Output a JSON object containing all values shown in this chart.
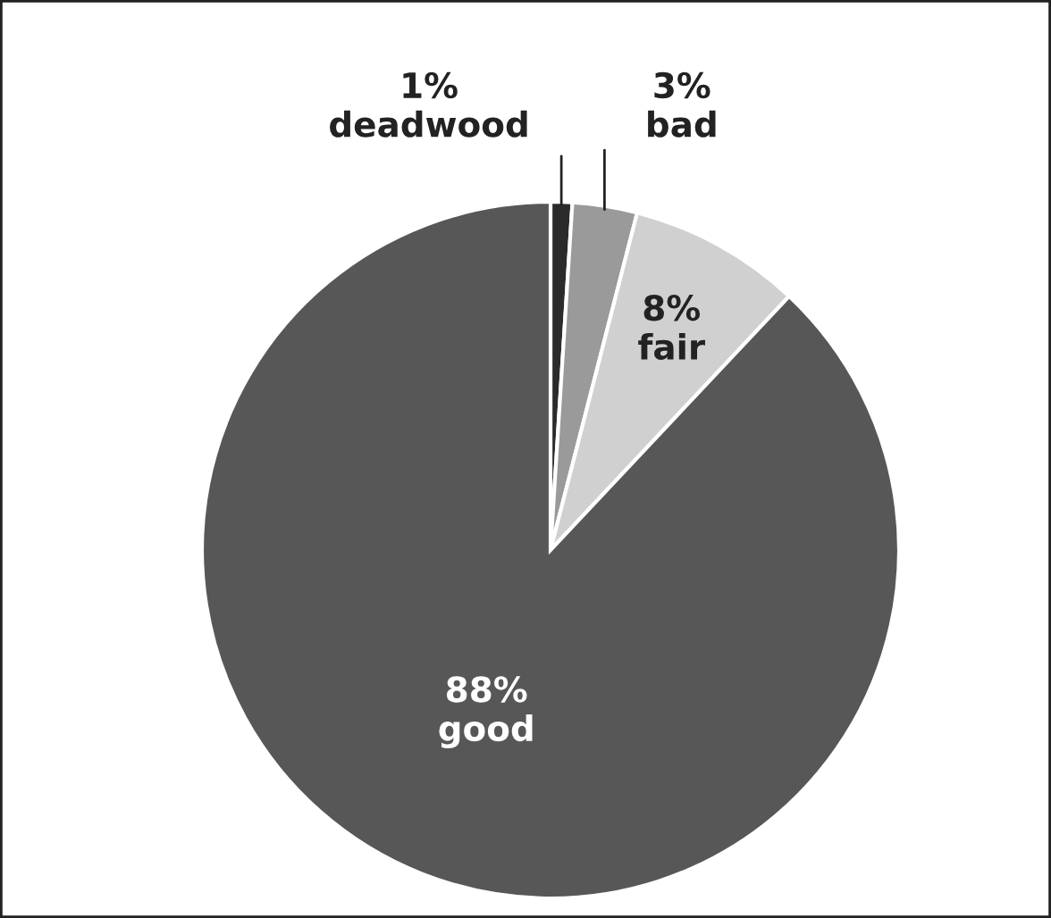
{
  "chart_data": {
    "type": "pie",
    "categories": [
      "deadwood",
      "bad",
      "fair",
      "good"
    ],
    "values": [
      1,
      3,
      8,
      88
    ],
    "colors": [
      "#2b2b2b",
      "#9a9a9a",
      "#d0d0d0",
      "#575757"
    ],
    "value_labels": [
      "1%",
      "3%",
      "8%",
      "88%"
    ],
    "legend": false
  }
}
